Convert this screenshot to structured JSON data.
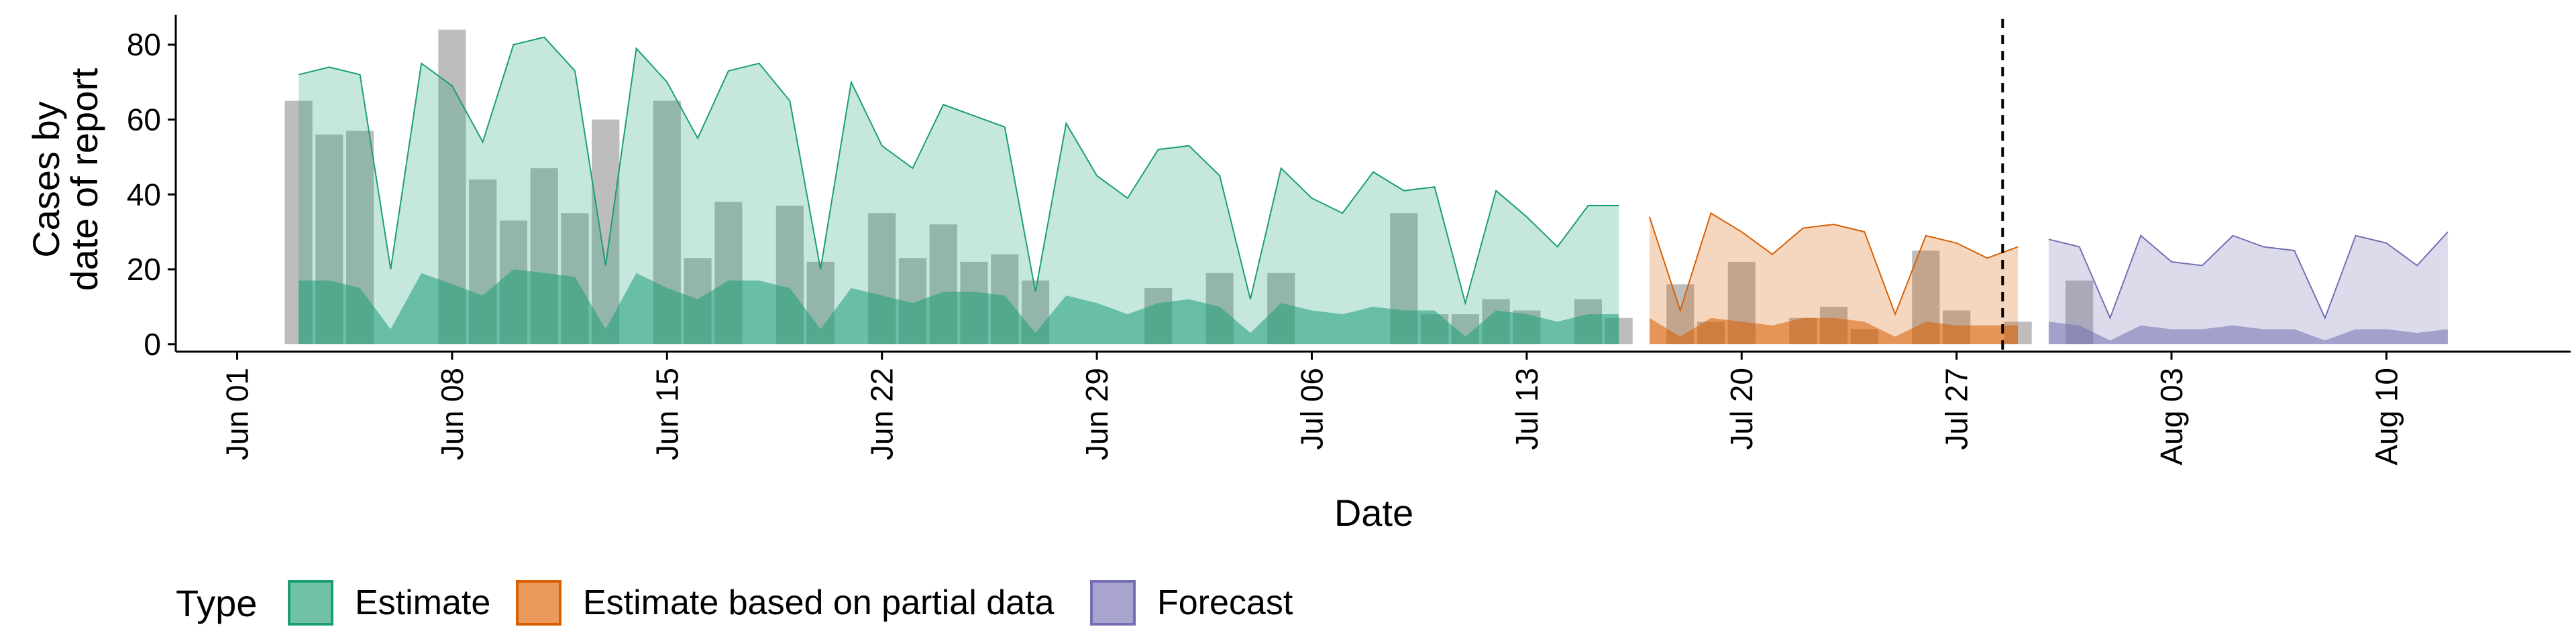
{
  "chart_data": {
    "type": "area",
    "xlabel": "Date",
    "ylabel_lines": [
      "Cases by",
      "date of report"
    ],
    "ylim": [
      -2,
      88
    ],
    "y_ticks": [
      0,
      20,
      40,
      60,
      80
    ],
    "x_range": [
      "2021-05-30",
      "2021-08-16"
    ],
    "x_ticks": [
      {
        "date": "2021-06-01",
        "label": "Jun 01"
      },
      {
        "date": "2021-06-08",
        "label": "Jun 08"
      },
      {
        "date": "2021-06-15",
        "label": "Jun 15"
      },
      {
        "date": "2021-06-22",
        "label": "Jun 22"
      },
      {
        "date": "2021-06-29",
        "label": "Jun 29"
      },
      {
        "date": "2021-07-06",
        "label": "Jul 06"
      },
      {
        "date": "2021-07-13",
        "label": "Jul 13"
      },
      {
        "date": "2021-07-20",
        "label": "Jul 20"
      },
      {
        "date": "2021-07-27",
        "label": "Jul 27"
      },
      {
        "date": "2021-08-03",
        "label": "Aug 03"
      },
      {
        "date": "2021-08-10",
        "label": "Aug 10"
      }
    ],
    "forecast_date": "2021-07-29",
    "legend": {
      "title": "Type",
      "position": "bottom",
      "items": [
        {
          "label": "Estimate",
          "fill": "#72c3a6",
          "stroke": "#1b9e77"
        },
        {
          "label": "Estimate based on partial data",
          "fill": "#ec9a5c",
          "stroke": "#d95f02"
        },
        {
          "label": "Forecast",
          "fill": "#aaa5d0",
          "stroke": "#7570b3"
        }
      ]
    },
    "colors": {
      "bars": "#9a9a9a",
      "estimate_fill": "#1b9e77",
      "estimate_line": "#1b9e77",
      "partial_fill": "#d95f02",
      "partial_line": "#d95f02",
      "forecast_fill": "#7570b3",
      "forecast_line": "#7570b3",
      "vline": "#000000"
    },
    "bars": {
      "start_date": "2021-06-03",
      "values": [
        65,
        56,
        57,
        0,
        0,
        84,
        44,
        33,
        47,
        35,
        60,
        0,
        65,
        23,
        38,
        0,
        37,
        22,
        0,
        35,
        23,
        32,
        22,
        24,
        17,
        0,
        0,
        0,
        15,
        0,
        19,
        0,
        19,
        0,
        0,
        0,
        35,
        8,
        8,
        12,
        9,
        0,
        12,
        7,
        0,
        16,
        6,
        22,
        0,
        7,
        10,
        4,
        0,
        25,
        9,
        0,
        6,
        0,
        17
      ]
    },
    "series": [
      {
        "name": "Estimate",
        "start_date": "2021-06-03",
        "upper": [
          72,
          74,
          72,
          20,
          75,
          69,
          54,
          80,
          82,
          73,
          21,
          79,
          70,
          55,
          73,
          75,
          65,
          20,
          70,
          53,
          47,
          64,
          61,
          58,
          14,
          59,
          45,
          39,
          52,
          53,
          45,
          12,
          47,
          39,
          35,
          46,
          41,
          42,
          11,
          41,
          34,
          26,
          37,
          37
        ],
        "lower": [
          17,
          17,
          15,
          4,
          19,
          16,
          13,
          20,
          19,
          18,
          4,
          19,
          15,
          12,
          17,
          17,
          15,
          4,
          15,
          13,
          11,
          14,
          14,
          13,
          3,
          13,
          11,
          8,
          11,
          12,
          10,
          3,
          11,
          9,
          8,
          10,
          9,
          9,
          2,
          9,
          8,
          6,
          8,
          8
        ]
      },
      {
        "name": "Estimate based on partial data",
        "start_date": "2021-07-17",
        "upper": [
          34,
          9,
          35,
          30,
          24,
          31,
          32,
          30,
          8,
          29,
          27,
          23,
          26
        ],
        "lower": [
          7,
          2,
          7,
          6,
          5,
          7,
          7,
          6,
          2,
          6,
          5,
          5,
          5
        ]
      },
      {
        "name": "Forecast",
        "start_date": "2021-07-30",
        "upper": [
          28,
          26,
          7,
          29,
          22,
          21,
          29,
          26,
          25,
          7,
          29,
          27,
          21,
          30
        ],
        "lower": [
          6,
          5,
          1,
          5,
          4,
          4,
          5,
          4,
          4,
          1,
          4,
          4,
          3,
          4
        ]
      }
    ]
  }
}
